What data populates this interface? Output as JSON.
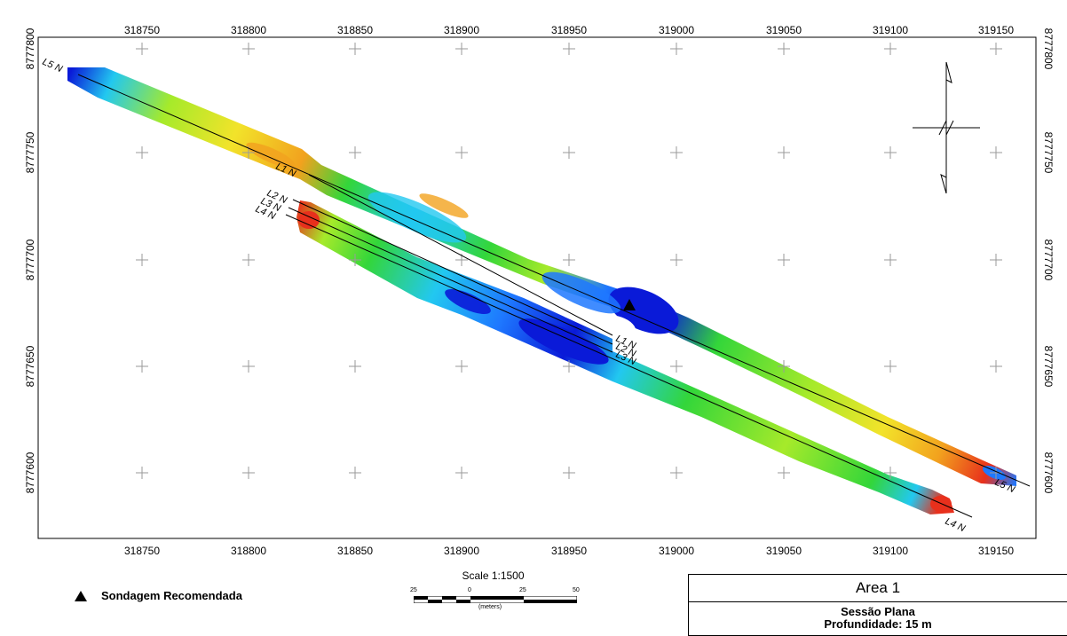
{
  "map": {
    "x_ticks": [
      "318750",
      "318800",
      "318850",
      "318900",
      "318950",
      "319000",
      "319050",
      "319100",
      "319150"
    ],
    "y_ticks": [
      "8777800",
      "8777750",
      "8777700",
      "8777650",
      "8777600"
    ],
    "colors": {
      "deep_blue": "#0a1ad8",
      "blue": "#1e78ff",
      "cyan": "#22c8f0",
      "green": "#33d63a",
      "lime": "#a6ea2a",
      "yellow": "#f2e32a",
      "orange": "#f2a21e",
      "red": "#e8301c"
    },
    "survey_lines": [
      {
        "id": "L5",
        "start_label": "L5 N",
        "end_label": "L5 N"
      },
      {
        "id": "L1",
        "start_label": "L1 N",
        "end_label": "L1 N"
      },
      {
        "id": "L2",
        "start_label": "L2 N",
        "end_label": "L2 N"
      },
      {
        "id": "L3",
        "start_label": "L3 N",
        "end_label": "L3 N"
      },
      {
        "id": "L4",
        "start_label": "L4 N",
        "end_label": "L4 N"
      }
    ],
    "north_arrow": "north-arrow-icon"
  },
  "legend": {
    "label": "Sondagem Recomendada",
    "icon": "triangle-icon"
  },
  "scale_bar": {
    "title": "Scale 1:1500",
    "labels": [
      "25",
      "0",
      "25",
      "50"
    ],
    "unit": "(meters)"
  },
  "title_block": {
    "area": "Area 1",
    "section": "Sessão Plana",
    "depth": "Profundidade: 15 m"
  }
}
